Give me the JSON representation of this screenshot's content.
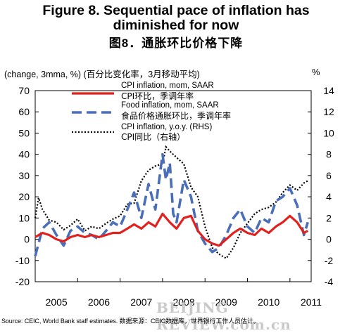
{
  "header": {
    "title_line1": "Figure 8. Sequential pace of inflation has",
    "title_line2": "diminished for now",
    "title_cn": "图8．通胀环比价格下降"
  },
  "axis_note": "(change, 3mma, %) (百分比变化率，3月移动平均)",
  "right_axis_unit": "%",
  "source": "Source: CEIC, World Bank staff estimates.    数据来源：CEIC数据库，世界银行工作人员估计。",
  "watermark": "BEIJING REVIEW.com.cn",
  "colors": {
    "cpi_mom": "#e0211d",
    "food_mom": "#4a6fb8",
    "cpi_yoy": "#000000"
  },
  "chart_data": {
    "type": "line",
    "title": "Figure 8. Sequential pace of inflation has diminished for now",
    "x_ticks": [
      "2005",
      "2006",
      "2007",
      "2008",
      "2009",
      "2010",
      "2011"
    ],
    "x_range": [
      2005.0,
      2011.5
    ],
    "left_axis": {
      "label": "(change, 3mma, %)",
      "ylim": [
        -20,
        70
      ],
      "ticks": [
        -20,
        -10,
        0,
        10,
        20,
        30,
        40,
        50,
        60,
        70
      ]
    },
    "right_axis": {
      "label": "%",
      "ylim": [
        -4,
        14
      ],
      "ticks": [
        -4,
        -2,
        0,
        2,
        4,
        6,
        8,
        10,
        12,
        14
      ]
    },
    "legend_position": "top-left",
    "series": [
      {
        "name": "CPI inflation, mom, SAAR",
        "name_cn": "CPI环比，季调年率",
        "axis": "left",
        "style": "solid",
        "x": [
          2005.0,
          2005.17,
          2005.33,
          2005.5,
          2005.67,
          2005.83,
          2006.0,
          2006.17,
          2006.33,
          2006.5,
          2006.67,
          2006.83,
          2007.0,
          2007.17,
          2007.33,
          2007.5,
          2007.67,
          2007.83,
          2008.0,
          2008.17,
          2008.33,
          2008.5,
          2008.67,
          2008.83,
          2009.0,
          2009.17,
          2009.33,
          2009.5,
          2009.67,
          2009.83,
          2010.0,
          2010.17,
          2010.33,
          2010.5,
          2010.67,
          2010.83,
          2011.0,
          2011.17,
          2011.33,
          2011.42
        ],
        "y": [
          1,
          3,
          2,
          0,
          -1,
          1,
          2,
          1,
          2,
          1,
          2,
          3,
          3,
          5,
          7,
          5,
          8,
          6,
          12,
          8,
          5,
          10,
          11,
          4,
          0,
          -2,
          -3,
          0,
          3,
          5,
          3,
          2,
          5,
          3,
          6,
          8,
          11,
          8,
          3,
          4
        ]
      },
      {
        "name": "Food inflation, mom, SAAR",
        "name_cn": "食品价格通胀环比，季调年率",
        "axis": "left",
        "style": "dashed",
        "x": [
          2005.0,
          2005.17,
          2005.33,
          2005.5,
          2005.67,
          2005.83,
          2006.0,
          2006.17,
          2006.33,
          2006.5,
          2006.67,
          2006.83,
          2007.0,
          2007.17,
          2007.33,
          2007.5,
          2007.67,
          2007.83,
          2008.0,
          2008.08,
          2008.17,
          2008.25,
          2008.33,
          2008.5,
          2008.67,
          2008.83,
          2009.0,
          2009.17,
          2009.33,
          2009.5,
          2009.67,
          2009.83,
          2010.0,
          2010.17,
          2010.33,
          2010.5,
          2010.67,
          2010.83,
          2011.0,
          2011.17,
          2011.33,
          2011.42
        ],
        "y": [
          -8,
          5,
          8,
          2,
          -3,
          4,
          6,
          3,
          2,
          0,
          4,
          8,
          6,
          14,
          22,
          10,
          26,
          14,
          40,
          28,
          36,
          12,
          8,
          28,
          20,
          4,
          -2,
          -6,
          -4,
          2,
          10,
          14,
          6,
          3,
          10,
          8,
          18,
          20,
          24,
          16,
          2,
          8
        ]
      },
      {
        "name": "CPI inflation, y.o.y. (RHS)",
        "name_cn": "CPI同比（右轴）",
        "axis": "right",
        "style": "dotted",
        "x": [
          2005.0,
          2005.08,
          2005.17,
          2005.33,
          2005.5,
          2005.67,
          2005.83,
          2006.0,
          2006.17,
          2006.33,
          2006.5,
          2006.67,
          2006.83,
          2007.0,
          2007.17,
          2007.33,
          2007.5,
          2007.67,
          2007.83,
          2008.0,
          2008.08,
          2008.17,
          2008.33,
          2008.5,
          2008.67,
          2008.83,
          2009.0,
          2009.17,
          2009.33,
          2009.5,
          2009.67,
          2009.83,
          2010.0,
          2010.17,
          2010.33,
          2010.5,
          2010.67,
          2010.83,
          2011.0,
          2011.17,
          2011.33,
          2011.42
        ],
        "y": [
          2.0,
          3.9,
          2.8,
          1.8,
          1.6,
          0.9,
          1.3,
          1.9,
          0.8,
          1.2,
          1.0,
          1.5,
          1.9,
          2.2,
          3.3,
          3.4,
          5.5,
          6.5,
          6.9,
          7.1,
          8.7,
          8.3,
          7.7,
          7.1,
          4.9,
          4.0,
          1.2,
          -0.8,
          -1.4,
          -1.8,
          -0.8,
          0.6,
          1.5,
          2.4,
          2.8,
          3.0,
          3.5,
          4.4,
          5.1,
          4.6,
          5.3,
          5.5
        ]
      }
    ]
  }
}
